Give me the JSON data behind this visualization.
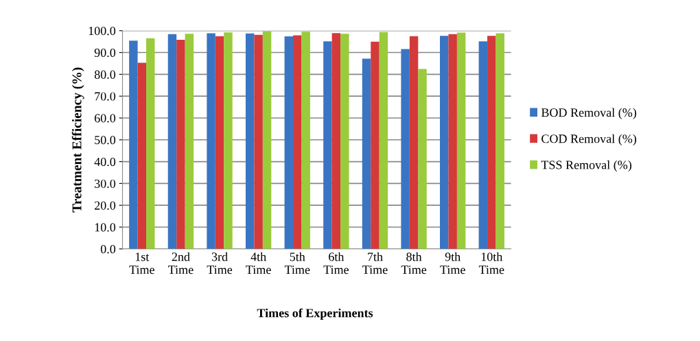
{
  "chart_data": {
    "type": "bar",
    "categories": [
      "1st\nTime",
      "2nd\nTime",
      "3rd\nTime",
      "4th\nTime",
      "5th\nTime",
      "6th\nTime",
      "7th\nTime",
      "8th\nTime",
      "9th\nTime",
      "10th\nTime"
    ],
    "series": [
      {
        "name": "BOD Removal (%)",
        "color": "#3a75c4",
        "values": [
          95.4,
          98.4,
          98.8,
          98.7,
          97.4,
          95.1,
          87.2,
          91.6,
          97.6,
          95.1
        ]
      },
      {
        "name": "COD Removal (%)",
        "color": "#d43a3a",
        "values": [
          85.3,
          95.8,
          97.5,
          98.1,
          97.9,
          98.9,
          95.0,
          97.5,
          98.4,
          97.6
        ]
      },
      {
        "name": "TSS Removal (%)",
        "color": "#9acb3c",
        "values": [
          96.5,
          98.6,
          99.2,
          99.7,
          99.5,
          98.6,
          99.4,
          82.5,
          99.1,
          98.8
        ]
      }
    ],
    "xlabel": "Times of Experiments",
    "ylabel": "Treatment Efficiency (%)",
    "ylim": [
      0,
      100
    ],
    "yticks": [
      {
        "value": 0,
        "label": "0.0"
      },
      {
        "value": 10,
        "label": "10.0"
      },
      {
        "value": 20,
        "label": "20.0"
      },
      {
        "value": 30,
        "label": "30.0"
      },
      {
        "value": 40,
        "label": "40.0"
      },
      {
        "value": 50,
        "label": "50.0"
      },
      {
        "value": 60,
        "label": "60.0"
      },
      {
        "value": 70,
        "label": "70.0"
      },
      {
        "value": 80,
        "label": "80.0"
      },
      {
        "value": 90,
        "label": "90.0"
      },
      {
        "value": 100,
        "label": "100.0"
      }
    ],
    "grid": "y",
    "legend": "right"
  }
}
